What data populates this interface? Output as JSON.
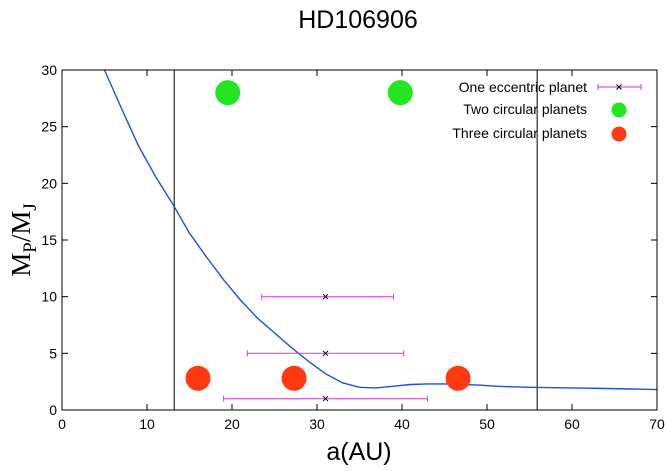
{
  "chart_data": {
    "type": "scatter",
    "title": "HD106906",
    "xlabel": "a(AU)",
    "ylabel": {
      "main": "M",
      "sub1": "P",
      "mid": "/M",
      "sub2": "J"
    },
    "xlim": [
      0,
      70
    ],
    "ylim": [
      0,
      30
    ],
    "xticks": [
      0,
      10,
      20,
      30,
      40,
      50,
      60,
      70
    ],
    "yticks": [
      0,
      5,
      10,
      15,
      20,
      25,
      30
    ],
    "vertical_lines": [
      13.2,
      55.9
    ],
    "curve": {
      "color": "#1f4fe0",
      "x": [
        5,
        7,
        9,
        11,
        13,
        15,
        17,
        19,
        21,
        23,
        25,
        27,
        29,
        31,
        33,
        35,
        37,
        39,
        41,
        43,
        45,
        47,
        49,
        51,
        53,
        55,
        58,
        61,
        64,
        67,
        70
      ],
      "y": [
        30,
        26.6,
        23.3,
        20.6,
        18.2,
        15.6,
        13.5,
        11.5,
        9.7,
        8.1,
        6.8,
        5.5,
        4.3,
        3.2,
        2.4,
        2.0,
        1.95,
        2.1,
        2.25,
        2.3,
        2.3,
        2.25,
        2.2,
        2.1,
        2.05,
        2.0,
        1.97,
        1.93,
        1.9,
        1.85,
        1.8
      ]
    },
    "series": [
      {
        "name": "One eccentric planet",
        "color": "#e64de6",
        "marker": "x",
        "points": [
          {
            "x": 31,
            "y": 10,
            "xerr": [
              23.5,
              39
            ]
          },
          {
            "x": 31,
            "y": 5,
            "xerr": [
              21.8,
              40.2
            ]
          },
          {
            "x": 31,
            "y": 1,
            "xerr": [
              19,
              43
            ]
          }
        ]
      },
      {
        "name": "Two circular planets",
        "color": "#22e622",
        "marker": "circle",
        "points": [
          {
            "x": 19.5,
            "y": 28
          },
          {
            "x": 39.8,
            "y": 28
          }
        ]
      },
      {
        "name": "Three circular planets",
        "color": "#ff3a12",
        "marker": "circle",
        "points": [
          {
            "x": 16,
            "y": 2.8
          },
          {
            "x": 27.3,
            "y": 2.8
          },
          {
            "x": 46.6,
            "y": 2.8
          }
        ]
      }
    ],
    "legend": "top-right",
    "grid": false
  }
}
